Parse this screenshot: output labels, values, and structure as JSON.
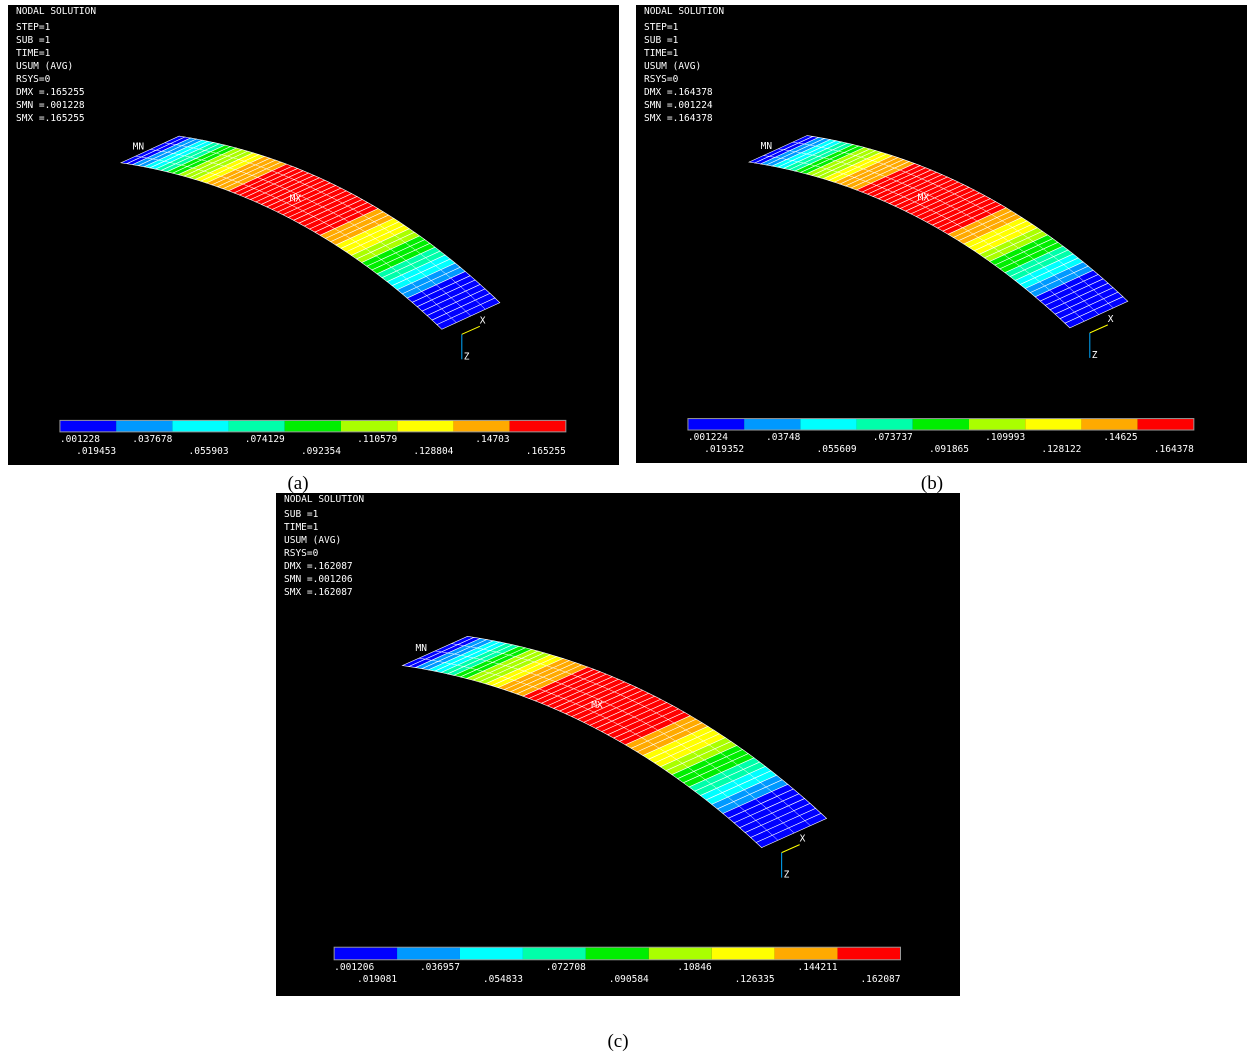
{
  "contour_colors": [
    "#0000ff",
    "#0099ff",
    "#00ffff",
    "#00ffaa",
    "#00ee00",
    "#aaff00",
    "#ffff00",
    "#ffaa00",
    "#ff0000"
  ],
  "panels": [
    {
      "header": [
        "NODAL SOLUTION",
        "STEP=1",
        "SUB =1",
        "TIME=1",
        "USUM      (AVG)",
        "RSYS=0",
        "DMX =.165255",
        "SMN =.001228",
        "SMX =.165255"
      ],
      "legend": [
        ".001228",
        ".019453",
        ".037678",
        ".055903",
        ".074129",
        ".092354",
        ".110579",
        ".128804",
        ".14703",
        ".165255"
      ],
      "markers": [
        "MN",
        "MX",
        "X",
        "Z"
      ],
      "caption": "(a)"
    },
    {
      "header": [
        "NODAL SOLUTION",
        "STEP=1",
        "SUB =1",
        "TIME=1",
        "USUM      (AVG)",
        "RSYS=0",
        "DMX =.164378",
        "SMN =.001224",
        "SMX =.164378"
      ],
      "legend": [
        ".001224",
        ".019352",
        ".03748",
        ".055609",
        ".073737",
        ".091865",
        ".109993",
        ".128122",
        ".14625",
        ".164378"
      ],
      "markers": [
        "MN",
        "MX",
        "X",
        "Z"
      ],
      "caption": "(b)"
    },
    {
      "header": [
        "NODAL SOLUTION",
        "SUB =1",
        "TIME=1",
        "USUM      (AVG)",
        "RSYS=0",
        "DMX =.162087",
        "SMN =.001206",
        "SMX =.162087"
      ],
      "legend": [
        ".001206",
        ".019081",
        ".036957",
        ".054833",
        ".072708",
        ".090584",
        ".10846",
        ".126335",
        ".144211",
        ".162087"
      ],
      "markers": [
        "MN",
        "MX",
        "X",
        "Z"
      ],
      "caption": "(c)"
    }
  ]
}
